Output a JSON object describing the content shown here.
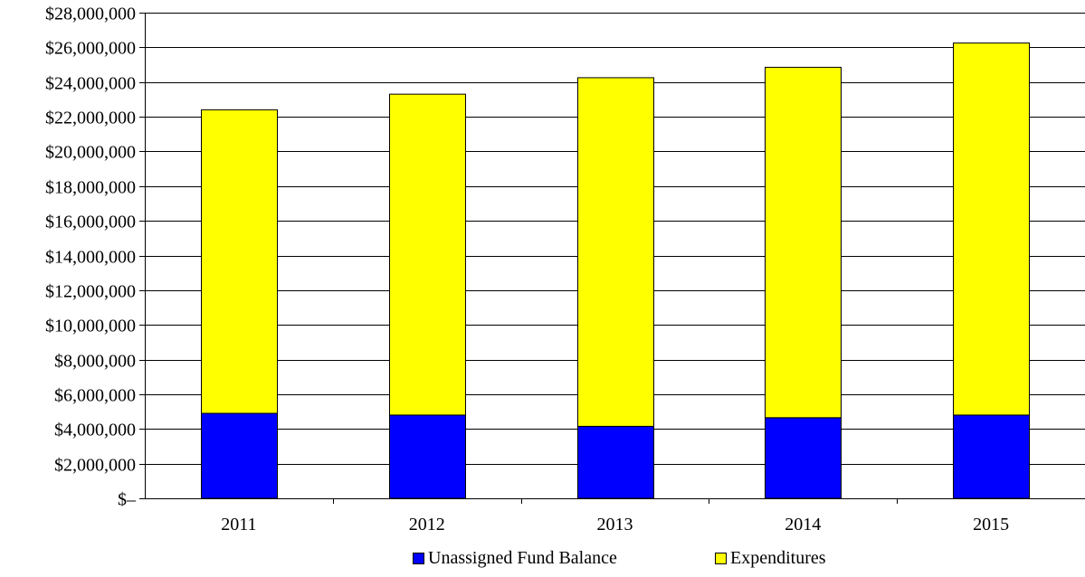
{
  "chart_data": {
    "type": "bar",
    "stacked": true,
    "title": "",
    "xlabel": "",
    "ylabel": "",
    "categories": [
      "2011",
      "2012",
      "2013",
      "2014",
      "2015"
    ],
    "series": [
      {
        "name": "Unassigned Fund Balance",
        "color": "#0000ff",
        "values": [
          4900000,
          4800000,
          4150000,
          4650000,
          4800000
        ]
      },
      {
        "name": "Expenditures",
        "color": "#ffff00",
        "values": [
          17500000,
          18500000,
          20100000,
          20200000,
          21450000
        ]
      }
    ],
    "ylim": [
      0,
      28000000
    ],
    "y_ticks": [
      0,
      2000000,
      4000000,
      6000000,
      8000000,
      10000000,
      12000000,
      14000000,
      16000000,
      18000000,
      20000000,
      22000000,
      24000000,
      26000000,
      28000000
    ],
    "y_tick_labels": [
      "$–",
      "$2,000,000",
      "$4,000,000",
      "$6,000,000",
      "$8,000,000",
      "$10,000,000",
      "$12,000,000",
      "$14,000,000",
      "$16,000,000",
      "$18,000,000",
      "$20,000,000",
      "$22,000,000",
      "$24,000,000",
      "$26,000,000",
      "$28,000,000"
    ],
    "grid": true,
    "legend_position": "bottom"
  }
}
